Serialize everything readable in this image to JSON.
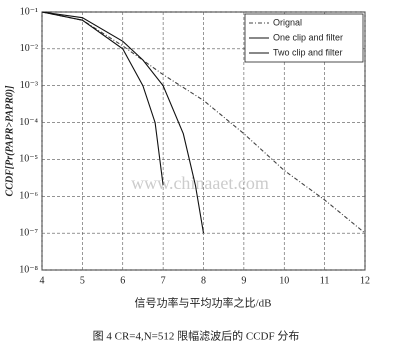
{
  "chart_data": {
    "type": "line",
    "y_label": "CCDF[Pr(PAPR>PAPR0)]",
    "x_label": "信号功率与平均功率之比/dB",
    "caption": "图 4  CR=4,N=512 限幅滤波后的 CCDF 分布",
    "watermark": "www.chinaaet.com",
    "log_y": true,
    "grid": true,
    "legend": "top-right",
    "xlim": [
      4,
      12
    ],
    "xticks": [
      4,
      5,
      6,
      7,
      8,
      9,
      10,
      11,
      12
    ],
    "ylim": [
      1e-08,
      0.1
    ],
    "yticks": [
      {
        "value": 1e-08,
        "label": "10⁻⁸"
      },
      {
        "value": 1e-07,
        "label": "10⁻⁷"
      },
      {
        "value": 1e-06,
        "label": "10⁻⁶"
      },
      {
        "value": 1e-05,
        "label": "10⁻⁵"
      },
      {
        "value": 0.0001,
        "label": "10⁻⁴"
      },
      {
        "value": 0.001,
        "label": "10⁻³"
      },
      {
        "value": 0.01,
        "label": "10⁻²"
      },
      {
        "value": 0.1,
        "label": "10⁻¹"
      }
    ],
    "series": [
      {
        "name": "Orignal",
        "color": "#444",
        "dash": "4,2,1,2",
        "x": [
          4,
          5,
          6,
          7,
          8,
          9,
          10,
          11,
          12
        ],
        "values": [
          0.1,
          0.06,
          0.012,
          0.002,
          0.0004,
          5e-05,
          5e-06,
          8e-07,
          1e-07
        ]
      },
      {
        "name": "One clip and filter",
        "color": "#111",
        "dash": "none",
        "x": [
          4,
          5,
          6,
          6.5,
          7,
          7.5,
          7.8,
          8
        ],
        "values": [
          0.1,
          0.07,
          0.016,
          0.005,
          0.001,
          5e-05,
          2e-06,
          1e-07
        ]
      },
      {
        "name": "Two clip and filter",
        "color": "#111",
        "dash": "none",
        "x": [
          4,
          5,
          6,
          6.5,
          6.8,
          7
        ],
        "values": [
          0.1,
          0.06,
          0.01,
          0.001,
          0.0001,
          2e-06
        ]
      }
    ]
  }
}
